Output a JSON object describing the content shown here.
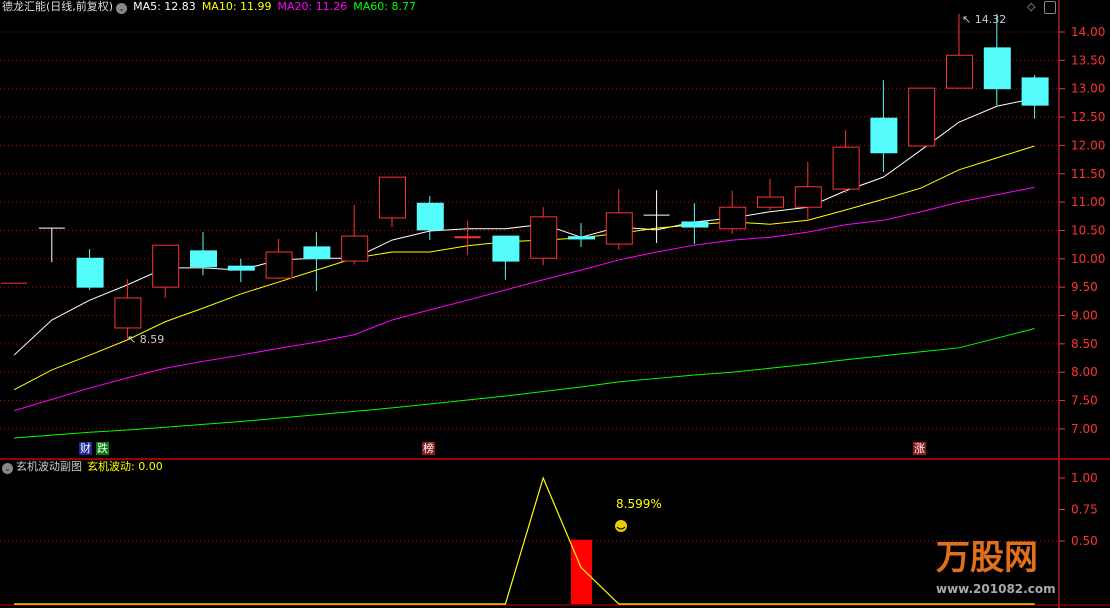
{
  "header": {
    "title": "德龙汇能(日线,前复权)",
    "ma5": "MA5: 12.83",
    "ma10": "MA10: 11.99",
    "ma20": "MA20: 11.26",
    "ma60": "MA60: 8.77"
  },
  "sub_header": {
    "title": "玄机波动副图",
    "value": "玄机波动: 0.00"
  },
  "markers": [
    {
      "text": "财",
      "bg": "#1a2a9a"
    },
    {
      "text": "跌",
      "bg": "#0a7a0a"
    },
    {
      "text": "榜",
      "bg": "#8b1a1a"
    },
    {
      "text": "涨",
      "bg": "#8b1a1a"
    }
  ],
  "annotations": {
    "low": "8.59",
    "high": "14.32",
    "pct": "8.599%"
  },
  "logo": {
    "text": "万股网",
    "url": "www.201082.com"
  },
  "icons": [
    "diamond-icon",
    "window-icon",
    "collapse-circle-icon",
    "smiley-icon"
  ],
  "colors": {
    "up": "#ff3232",
    "down": "#54fcfc",
    "ma5": "#ffffff",
    "ma10": "#ffff00",
    "ma20": "#ff00ff",
    "ma60": "#00ff00",
    "grid": "#c00000",
    "axis": "#ff3232"
  },
  "chart_data": [
    {
      "type": "candlestick",
      "ylim": [
        6.75,
        14.3
      ],
      "yticks": [
        "14.00",
        "13.50",
        "13.00",
        "12.50",
        "12.00",
        "11.50",
        "11.00",
        "10.50",
        "10.00",
        "9.50",
        "9.00",
        "8.50",
        "8.00",
        "7.50",
        "7.00"
      ],
      "grid": true,
      "candles": [
        [
          9.57,
          9.57,
          9.57,
          9.57
        ],
        [
          10.54,
          10.54,
          9.94,
          10.54
        ],
        [
          10.01,
          10.17,
          9.45,
          9.5
        ],
        [
          8.78,
          9.64,
          8.59,
          9.31
        ],
        [
          9.5,
          10.24,
          9.31,
          10.24
        ],
        [
          10.14,
          10.47,
          9.71,
          9.86
        ],
        [
          9.87,
          10.0,
          9.59,
          9.8
        ],
        [
          9.66,
          10.35,
          9.64,
          10.12
        ],
        [
          10.21,
          10.47,
          9.43,
          10.0
        ],
        [
          9.96,
          10.95,
          9.9,
          10.4
        ],
        [
          10.72,
          11.44,
          10.56,
          11.44
        ],
        [
          10.98,
          11.11,
          10.33,
          10.51
        ],
        [
          10.38,
          10.67,
          10.07,
          10.38
        ],
        [
          10.4,
          10.4,
          9.63,
          9.96
        ],
        [
          10.01,
          10.91,
          9.89,
          10.74
        ],
        [
          10.39,
          10.63,
          10.21,
          10.35
        ],
        [
          10.26,
          11.23,
          10.16,
          10.81
        ],
        [
          10.77,
          11.21,
          10.28,
          10.77
        ],
        [
          10.65,
          10.98,
          10.26,
          10.56
        ],
        [
          10.53,
          11.2,
          10.44,
          10.91
        ],
        [
          10.91,
          11.41,
          10.86,
          11.09
        ],
        [
          10.91,
          11.71,
          10.7,
          11.27
        ],
        [
          11.23,
          12.27,
          11.16,
          11.97
        ],
        [
          12.48,
          13.15,
          11.53,
          11.87
        ],
        [
          11.99,
          13.01,
          11.99,
          13.01
        ],
        [
          13.01,
          14.32,
          13.01,
          13.59
        ],
        [
          13.72,
          14.32,
          12.71,
          13.0
        ],
        [
          13.19,
          13.24,
          12.47,
          12.71
        ]
      ],
      "series": [
        {
          "name": "MA5",
          "values": [
            8.3,
            8.92,
            9.27,
            9.54,
            9.84,
            9.84,
            9.8,
            9.98,
            10.01,
            10.01,
            10.33,
            10.49,
            10.53,
            10.53,
            10.61,
            10.38,
            10.56,
            10.51,
            10.65,
            10.72,
            10.83,
            10.91,
            11.2,
            11.44,
            11.92,
            12.41,
            12.69,
            12.83
          ]
        },
        {
          "name": "MA10",
          "values": [
            7.69,
            8.04,
            8.3,
            8.57,
            8.89,
            9.13,
            9.38,
            9.59,
            9.8,
            10.01,
            10.12,
            10.12,
            10.23,
            10.3,
            10.33,
            10.37,
            10.45,
            10.54,
            10.6,
            10.65,
            10.61,
            10.68,
            10.86,
            11.05,
            11.25,
            11.57,
            11.78,
            11.99
          ]
        },
        {
          "name": "MA20",
          "values": [
            7.32,
            7.52,
            7.72,
            7.9,
            8.07,
            8.19,
            8.3,
            8.42,
            8.53,
            8.66,
            8.92,
            9.1,
            9.27,
            9.45,
            9.63,
            9.8,
            9.98,
            10.12,
            10.24,
            10.33,
            10.38,
            10.47,
            10.6,
            10.68,
            10.83,
            11.0,
            11.13,
            11.26
          ]
        },
        {
          "name": "MA60",
          "values": [
            6.84,
            6.89,
            6.94,
            6.98,
            7.03,
            7.08,
            7.13,
            7.19,
            7.25,
            7.31,
            7.37,
            7.44,
            7.51,
            7.58,
            7.66,
            7.74,
            7.83,
            7.89,
            7.95,
            8.0,
            8.07,
            8.14,
            8.22,
            8.29,
            8.36,
            8.43,
            8.6,
            8.77
          ]
        }
      ]
    },
    {
      "type": "line+bar",
      "ylim": [
        0,
        1.05
      ],
      "yticks": [
        "1.00",
        "0.75",
        "0.50"
      ],
      "line": [
        0,
        0,
        0,
        0,
        0,
        0,
        0,
        0,
        0,
        0,
        0,
        0,
        0,
        0,
        1.0,
        0.29,
        0,
        0,
        0,
        0,
        0,
        0,
        0,
        0,
        0,
        0,
        0,
        0
      ],
      "bars": [
        {
          "index": 15,
          "value": 0.51
        }
      ]
    }
  ]
}
